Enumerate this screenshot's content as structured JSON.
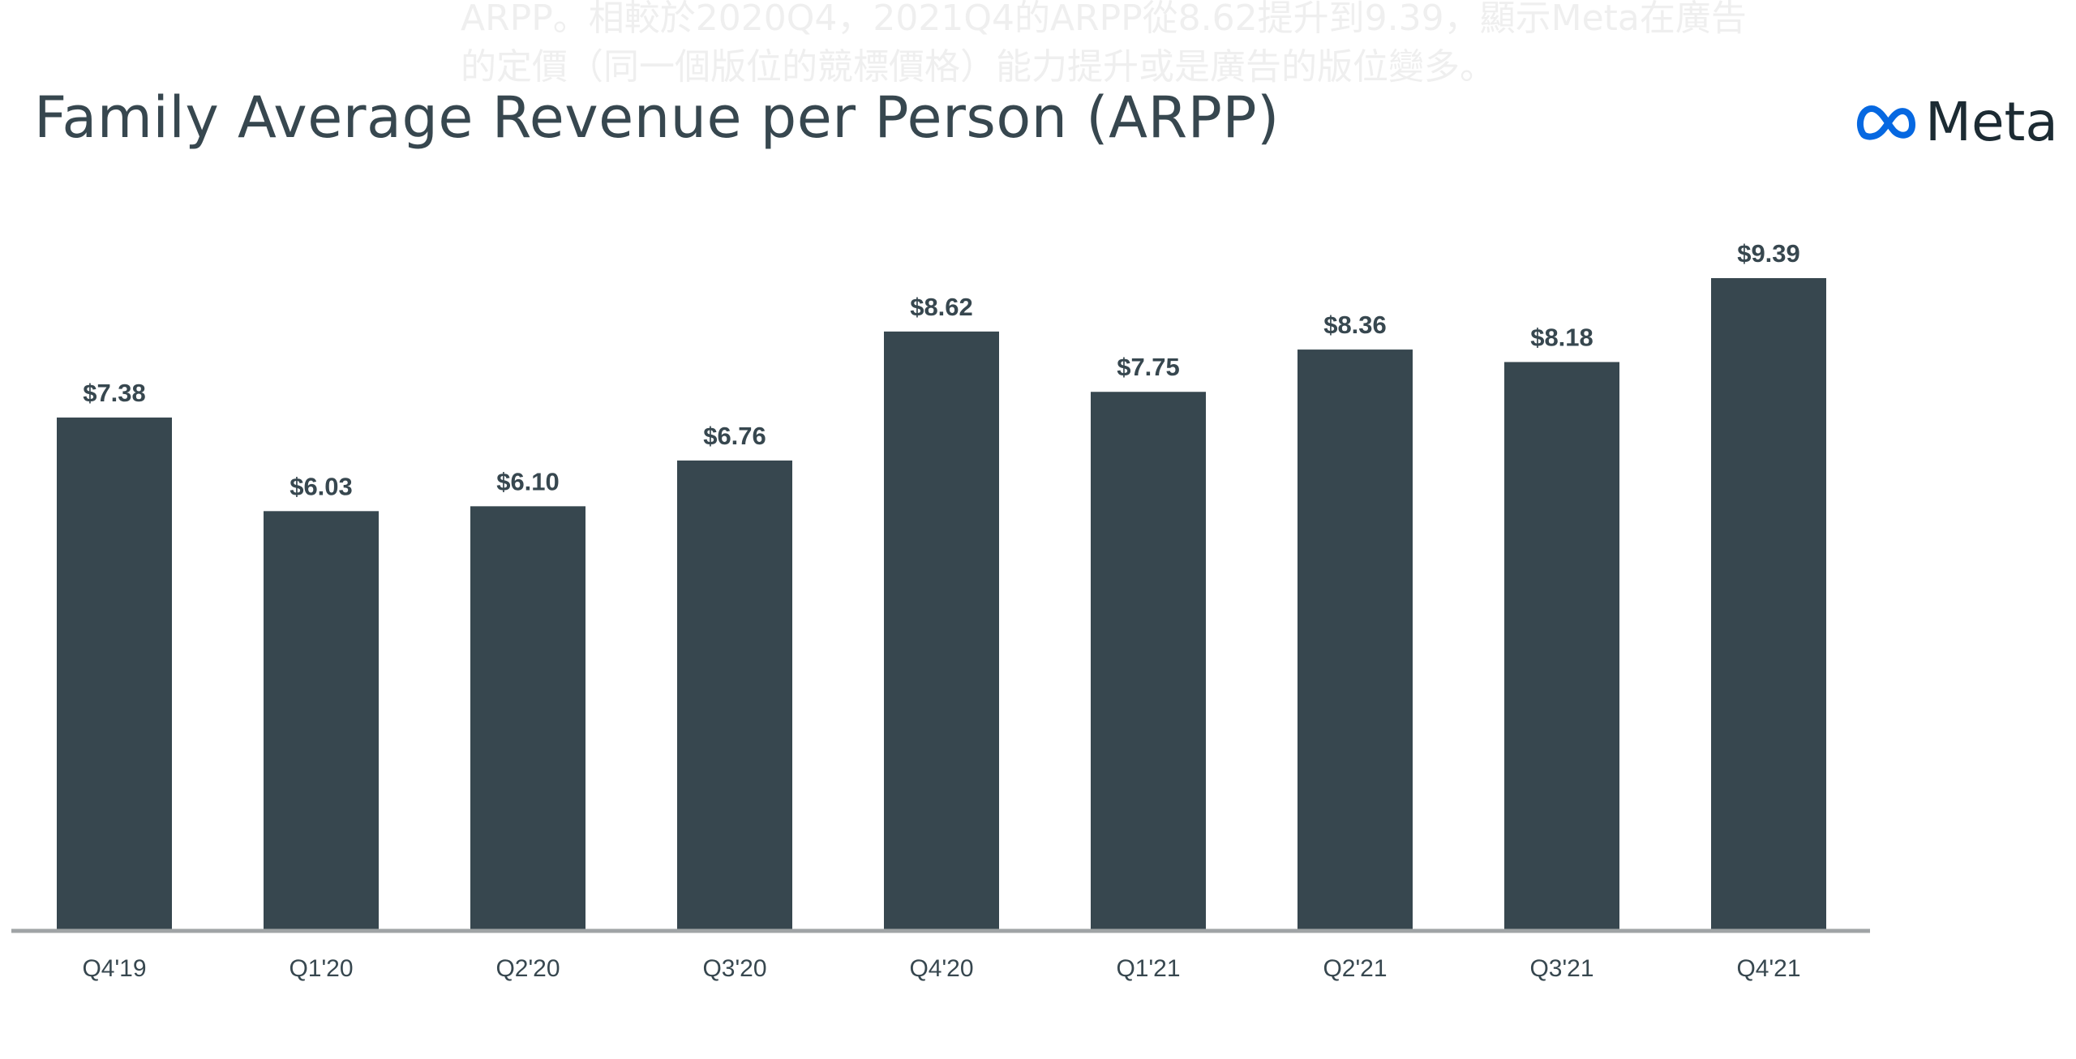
{
  "background_text": {
    "line1": "ARPP。相較於2020Q4，2021Q4的ARPP從8.62提升到9.39，顯示Meta在廣告",
    "line2": "的定價（同一個版位的競標價格）能力提升或是廣告的版位變多。"
  },
  "logo": {
    "text": "Meta",
    "icon": "meta-infinity-icon",
    "color": "#0668e1"
  },
  "chart_data": {
    "type": "bar",
    "title": "Family Average Revenue per Person (ARPP)",
    "categories": [
      "Q4'19",
      "Q1'20",
      "Q2'20",
      "Q3'20",
      "Q4'20",
      "Q1'21",
      "Q2'21",
      "Q3'21",
      "Q4'21"
    ],
    "values": [
      7.38,
      6.03,
      6.1,
      6.76,
      8.62,
      7.75,
      8.36,
      8.18,
      9.39
    ],
    "labels": [
      "$7.38",
      "$6.03",
      "$6.10",
      "$6.76",
      "$8.62",
      "$7.75",
      "$8.36",
      "$8.18",
      "$9.39"
    ],
    "ylim": [
      0,
      9.39
    ],
    "grid": false,
    "bar_color": "#37474f",
    "xlabel": "",
    "ylabel": ""
  }
}
